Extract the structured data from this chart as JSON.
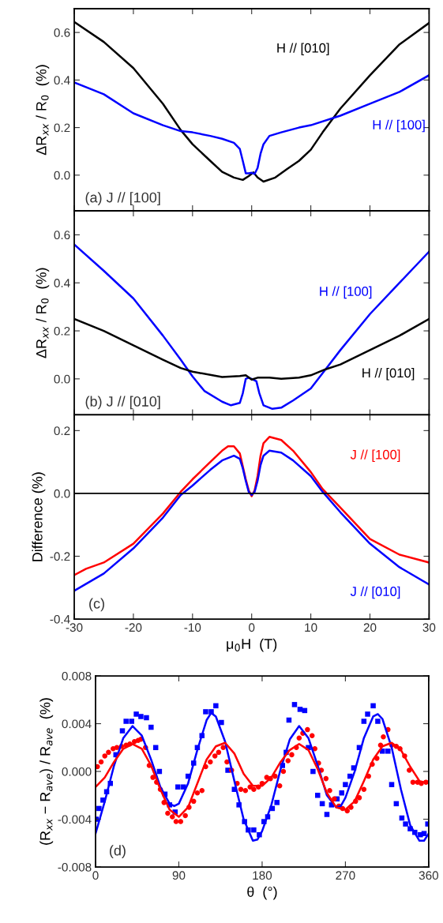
{
  "chart_data": [
    {
      "type": "line",
      "ylabel": "ΔR$_{xx}$ / R$_{0}$  (%)",
      "xlim": [
        -30,
        30
      ],
      "xticks": [
        -30,
        -20,
        -10,
        0,
        10,
        20,
        30
      ],
      "ylim": [
        -0.15,
        0.7
      ],
      "yticks": [
        {
          "value": 0,
          "label": "0.0"
        },
        0.2,
        0.4,
        0.6
      ],
      "tick_labels": "y",
      "grid": false,
      "legend": false,
      "annotations": [
        "(a) J // [100]"
      ],
      "series": [
        {
          "name": "H // [010]",
          "color": "#000000",
          "x": [
            -30,
            -25,
            -20,
            -15,
            -12,
            -10,
            -7,
            -5,
            -3,
            -1.5,
            -0.5,
            0.3,
            1,
            2,
            4,
            6,
            8,
            10,
            12,
            15,
            20,
            25,
            30
          ],
          "values": [
            0.644,
            0.56,
            0.45,
            0.3,
            0.19,
            0.13,
            0.06,
            0.014,
            -0.01,
            -0.02,
            -0.004,
            0.012,
            -0.01,
            -0.027,
            -0.01,
            0.026,
            0.06,
            0.107,
            0.18,
            0.28,
            0.42,
            0.55,
            0.64
          ]
        },
        {
          "name": "H // [100]",
          "color": "#0000ff",
          "x": [
            -30,
            -25,
            -20,
            -15,
            -12,
            -10,
            -7,
            -5,
            -3,
            -2,
            -1.5,
            -1,
            -0.5,
            0,
            0.5,
            1,
            1.5,
            2,
            3,
            5,
            8,
            10,
            15,
            20,
            25,
            30
          ],
          "values": [
            0.39,
            0.34,
            0.26,
            0.21,
            0.185,
            0.18,
            0.165,
            0.153,
            0.136,
            0.11,
            0.06,
            0.008,
            0.008,
            0.01,
            0.005,
            0.03,
            0.09,
            0.13,
            0.165,
            0.18,
            0.2,
            0.21,
            0.25,
            0.3,
            0.35,
            0.42
          ]
        }
      ]
    },
    {
      "type": "line",
      "ylabel": "ΔR$_{xx}$ / R$_{0}$  (%)",
      "xlim": [
        -30,
        30
      ],
      "xticks": [
        -30,
        -20,
        -10,
        0,
        10,
        20,
        30
      ],
      "ylim": [
        -0.15,
        0.7
      ],
      "yticks": [
        {
          "value": 0,
          "label": "0.0"
        },
        0.2,
        0.4,
        0.6
      ],
      "tick_labels": "y",
      "grid": false,
      "legend": false,
      "annotations": [
        "(b) J // [010]"
      ],
      "series": [
        {
          "name": "H // [100]",
          "color": "#0000ff",
          "x": [
            -30,
            -25,
            -20,
            -15,
            -12,
            -10,
            -8,
            -5,
            -3.5,
            -2,
            -1.5,
            -1,
            -0.5,
            0,
            0.8,
            1.3,
            2,
            3.5,
            5,
            7,
            10,
            12.5,
            15,
            20,
            25,
            30
          ],
          "values": [
            0.56,
            0.45,
            0.335,
            0.18,
            0.08,
            0.01,
            -0.05,
            -0.095,
            -0.11,
            -0.1,
            -0.06,
            0.0,
            0.005,
            0.0,
            -0.01,
            -0.06,
            -0.11,
            -0.125,
            -0.12,
            -0.09,
            -0.04,
            0.04,
            0.12,
            0.27,
            0.4,
            0.53
          ]
        },
        {
          "name": "H // [010]",
          "color": "#000000",
          "x": [
            -30,
            -25,
            -20,
            -15,
            -12,
            -10,
            -5,
            -2,
            -1,
            0,
            1,
            3,
            5,
            8,
            10,
            12.5,
            15,
            20,
            25,
            30
          ],
          "values": [
            0.25,
            0.2,
            0.14,
            0.08,
            0.045,
            0.03,
            0.008,
            0.012,
            0.015,
            -0.003,
            0.005,
            0.005,
            0.0,
            0.005,
            0.015,
            0.04,
            0.06,
            0.12,
            0.18,
            0.25
          ]
        }
      ]
    },
    {
      "type": "line",
      "ylabel": "Difference (%)",
      "xlabel": "μ$_{0}$H  (T)",
      "xlim": [
        -30,
        30
      ],
      "xticks": [
        -30,
        -20,
        -10,
        0,
        10,
        20,
        30
      ],
      "ylim": [
        -0.4,
        0.25
      ],
      "yticks": [
        {
          "value": -0.4,
          "label": "-0.4"
        },
        {
          "value": -0.2,
          "label": "-0.2"
        },
        {
          "value": 0,
          "label": "0.0"
        },
        0.2
      ],
      "grid": false,
      "legend": false,
      "annotations": [
        "(c)"
      ],
      "ref_lines": [
        {
          "axis": "y",
          "value": 0,
          "color": "#000000"
        }
      ],
      "series": [
        {
          "name": "J // [100]",
          "color": "#ff0000",
          "x": [
            -30,
            -28,
            -25,
            -20,
            -15,
            -12,
            -10,
            -7,
            -5,
            -4,
            -3,
            -2,
            -1,
            -0.5,
            0,
            0.5,
            1,
            1.5,
            2,
            3,
            5,
            7,
            10,
            12,
            15,
            20,
            25,
            30
          ],
          "values": [
            -0.26,
            -0.24,
            -0.22,
            -0.16,
            -0.064,
            0.005,
            0.045,
            0.1,
            0.136,
            0.15,
            0.15,
            0.127,
            0.045,
            0.01,
            -0.009,
            0.01,
            0.055,
            0.12,
            0.16,
            0.18,
            0.17,
            0.136,
            0.068,
            0.014,
            -0.045,
            -0.145,
            -0.195,
            -0.22
          ]
        },
        {
          "name": "J // [010]",
          "color": "#0000ff",
          "x": [
            -30,
            -25,
            -20,
            -15,
            -12,
            -10,
            -7,
            -5,
            -3,
            -2,
            -1.5,
            -1,
            -0.5,
            0,
            0.5,
            1,
            1.5,
            2,
            3,
            5,
            7,
            10,
            12,
            15,
            20,
            25,
            30
          ],
          "values": [
            -0.31,
            -0.255,
            -0.175,
            -0.077,
            -0.005,
            0.025,
            0.075,
            0.105,
            0.12,
            0.11,
            0.08,
            0.04,
            0.005,
            -0.005,
            0.005,
            0.04,
            0.09,
            0.12,
            0.136,
            0.13,
            0.105,
            0.055,
            0.005,
            -0.06,
            -0.16,
            -0.235,
            -0.29
          ]
        }
      ]
    },
    {
      "type": "line",
      "ylabel": "(R$_{xx}$ − R$_{ave}$) / R$_{ave}$  (%)",
      "xlabel": "θ  (°)",
      "xlim": [
        0,
        360
      ],
      "xticks": [
        0,
        90,
        180,
        270,
        360
      ],
      "ylim": [
        -0.008,
        0.008
      ],
      "yticks": [
        {
          "value": -0.008,
          "label": "-0.008"
        },
        {
          "value": -0.004,
          "label": "-0.004"
        },
        {
          "value": 0,
          "label": "0.000"
        },
        {
          "value": 0.004,
          "label": "0.004"
        },
        {
          "value": 0.008,
          "label": "0.008"
        }
      ],
      "grid": false,
      "legend": false,
      "annotations": [
        "(d)"
      ],
      "series": [
        {
          "type": "scatter",
          "marker": "square",
          "color": "#0000ff",
          "x": [
            0.6,
            3.7,
            8,
            12,
            16,
            22,
            29,
            33,
            39,
            44,
            49,
            55,
            60,
            65,
            69,
            75,
            80,
            86,
            89,
            95,
            100,
            106,
            110,
            115,
            119,
            125,
            130,
            136,
            143,
            150,
            155,
            161,
            165,
            171,
            177,
            182,
            186,
            191,
            196,
            202,
            206,
            209,
            215,
            221,
            226,
            230,
            235,
            240,
            245,
            250,
            255,
            261,
            266,
            270,
            275,
            279,
            285,
            290,
            294,
            300,
            305,
            310,
            316,
            320,
            325,
            331,
            335,
            340,
            345,
            351,
            355,
            359
          ],
          "values": [
            -0.004,
            -0.0031,
            -0.0024,
            -0.0017,
            -0.001,
            0.0014,
            0.0034,
            0.0042,
            0.0042,
            0.0048,
            0.0046,
            0.0045,
            0.0037,
            0.002,
            0.0,
            -0.0019,
            -0.0028,
            -0.0034,
            -0.0013,
            -0.0013,
            -0.0004,
            0.0007,
            0.002,
            0.003,
            0.005,
            0.005,
            0.0055,
            0.0041,
            0.0001,
            -0.0015,
            -0.0028,
            -0.0042,
            -0.0049,
            -0.0049,
            -0.0053,
            -0.0042,
            -0.0038,
            -0.0031,
            -0.0026,
            0.0005,
            0.0016,
            0.0043,
            0.0056,
            0.0052,
            0.0051,
            0.002,
            0.0,
            -0.002,
            -0.0027,
            -0.0036,
            -0.0028,
            -0.0023,
            -0.0018,
            -0.0011,
            -0.0004,
            0.0003,
            0.002,
            0.0042,
            0.0048,
            0.0055,
            0.0042,
            0.0017,
            0.0017,
            -0.0011,
            -0.0027,
            -0.0039,
            -0.0044,
            -0.0048,
            -0.0051,
            -0.0053,
            -0.0052,
            -0.0044
          ]
        },
        {
          "type": "scatter",
          "marker": "circle",
          "color": "#ff0000",
          "x": [
            2,
            6,
            10,
            14,
            19,
            23,
            28,
            33,
            37,
            42,
            46,
            49,
            54,
            58,
            62,
            66,
            70,
            74,
            78,
            83,
            87,
            92,
            97,
            101,
            106,
            110,
            115,
            119,
            124,
            129,
            133,
            138,
            142,
            147,
            153,
            157,
            162,
            167,
            171,
            176,
            180,
            185,
            189,
            194,
            199,
            203,
            208,
            212,
            217,
            220,
            224,
            229,
            234,
            237,
            241,
            244,
            249,
            253,
            258,
            263,
            267,
            272,
            276,
            281,
            285,
            290,
            295,
            299,
            304,
            308,
            311,
            316,
            320,
            325,
            329,
            334,
            339,
            343,
            348,
            352,
            357
          ],
          "values": [
            0.0004,
            0.0008,
            0.0013,
            0.0016,
            0.0019,
            0.002,
            0.0021,
            0.0022,
            0.0023,
            0.0025,
            0.0026,
            0.0027,
            0.002,
            0.0005,
            -0.0005,
            -0.0009,
            -0.0015,
            -0.0026,
            -0.0035,
            -0.0038,
            -0.0042,
            -0.0042,
            -0.0037,
            -0.003,
            -0.0025,
            -0.0018,
            -0.0016,
            0.0004,
            0.0008,
            0.0013,
            0.0016,
            0.002,
            0.0008,
            0.0001,
            -0.001,
            -0.0015,
            -0.0016,
            -0.0013,
            -0.0015,
            -0.0013,
            -0.001,
            -0.0005,
            -0.0006,
            -0.0004,
            -0.0012,
            0.0,
            0.0009,
            0.0014,
            0.002,
            0.0028,
            0.0032,
            0.0035,
            0.003,
            0.0019,
            0.0007,
            0.0001,
            -0.0006,
            -0.0016,
            -0.0023,
            -0.0029,
            -0.0031,
            -0.0033,
            -0.003,
            -0.0025,
            -0.0022,
            -0.0015,
            -0.0004,
            0.0006,
            0.0011,
            0.0022,
            0.0029,
            0.0035,
            0.0022,
            0.0021,
            0.0019,
            0.0013,
            0.0001,
            -0.0009,
            -0.0009,
            -0.001,
            -0.0009
          ]
        },
        {
          "type": "line",
          "color": "#0000ff",
          "x": [
            0,
            10,
            20,
            30,
            40,
            50,
            60,
            70,
            80,
            85,
            90,
            100,
            110,
            120,
            125,
            130,
            140,
            150,
            160,
            170,
            175,
            180,
            190,
            200,
            210,
            220,
            230,
            240,
            250,
            260,
            265,
            270,
            280,
            290,
            300,
            305,
            310,
            320,
            330,
            340,
            350,
            355,
            360
          ],
          "values": [
            -0.0052,
            -0.0025,
            0.0005,
            0.0028,
            0.0038,
            0.003,
            0.001,
            -0.0013,
            -0.0027,
            -0.0029,
            -0.0027,
            -0.001,
            0.0018,
            0.0043,
            0.0049,
            0.0046,
            0.0025,
            -0.0008,
            -0.004,
            -0.0058,
            -0.0057,
            -0.005,
            -0.0028,
            0.0002,
            0.0027,
            0.0038,
            0.0028,
            0.0005,
            -0.002,
            -0.003,
            -0.0029,
            -0.0022,
            0.0,
            0.0028,
            0.0046,
            0.0048,
            0.0044,
            0.002,
            -0.0015,
            -0.0045,
            -0.0058,
            -0.0058,
            -0.0052
          ]
        },
        {
          "type": "line",
          "color": "#ff0000",
          "x": [
            0,
            10,
            20,
            30,
            40,
            50,
            60,
            70,
            80,
            90,
            100,
            110,
            120,
            130,
            140,
            150,
            160,
            170,
            180,
            190,
            200,
            210,
            220,
            230,
            240,
            250,
            260,
            270,
            280,
            290,
            300,
            310,
            320,
            330,
            340,
            350,
            360
          ],
          "values": [
            -0.0013,
            -0.0005,
            0.0008,
            0.0019,
            0.0023,
            0.0019,
            0.0005,
            -0.0015,
            -0.0032,
            -0.0038,
            -0.003,
            -0.001,
            0.001,
            0.0021,
            0.0024,
            0.0015,
            -0.0002,
            -0.0012,
            -0.0012,
            -0.0005,
            0.0008,
            0.0018,
            0.0023,
            0.0018,
            0.0002,
            -0.0018,
            -0.003,
            -0.0032,
            -0.0025,
            -0.0008,
            0.001,
            0.0021,
            0.0024,
            0.0018,
            0.0004,
            -0.0008,
            -0.001
          ]
        }
      ]
    }
  ]
}
